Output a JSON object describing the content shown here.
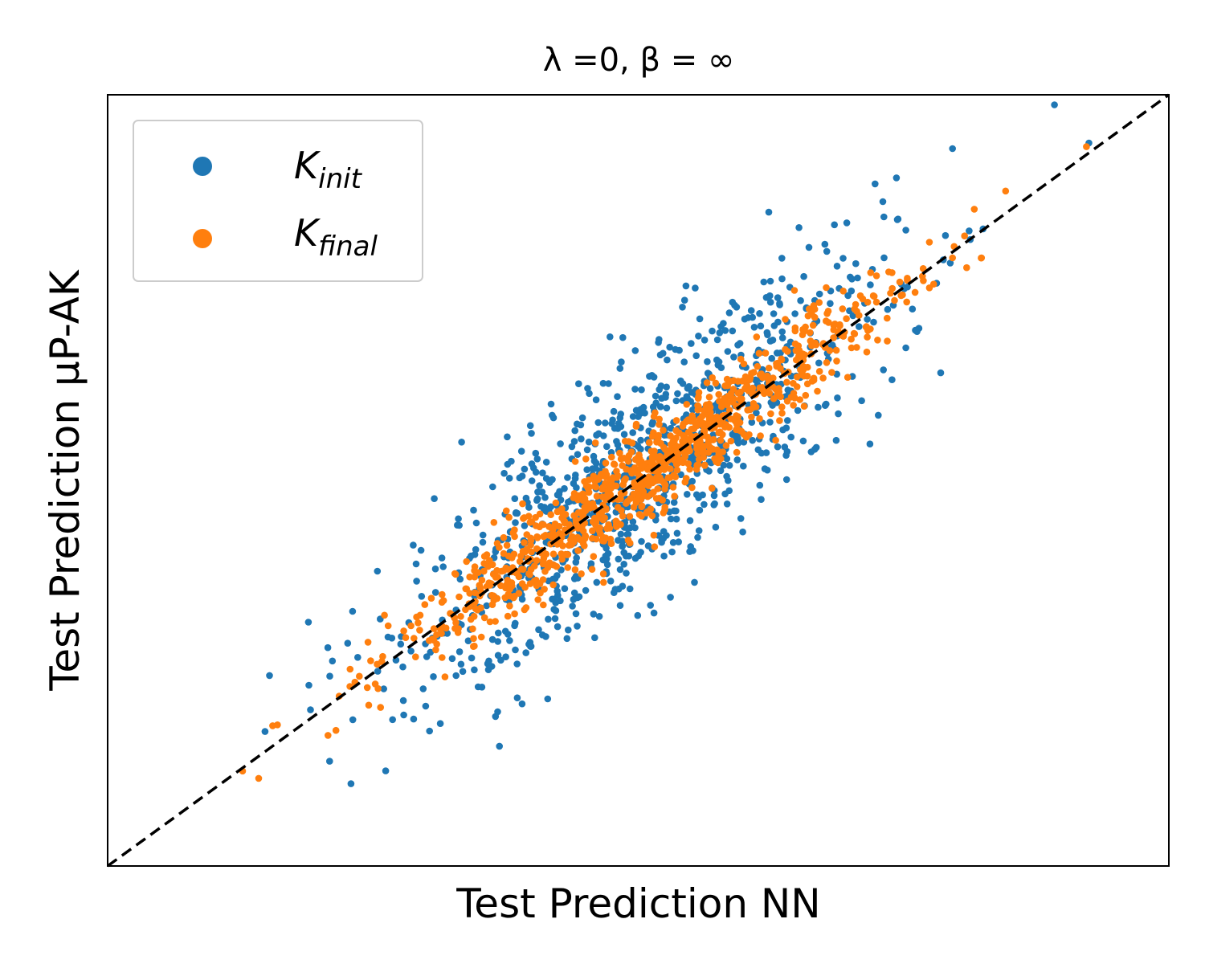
{
  "chart_data": {
    "type": "scatter",
    "title": "λ =0, β = ∞",
    "xlabel": "Test Prediction NN",
    "ylabel": "Test Prediction μP-AK",
    "xlim": [
      -3.0,
      3.0
    ],
    "ylim": [
      -3.0,
      3.0
    ],
    "ticks_shown": false,
    "grid": false,
    "legend_position": "upper-left",
    "reference_line": {
      "type": "identity",
      "style": "dashed",
      "color": "#000000"
    },
    "series": [
      {
        "name": "K_init",
        "color": "#1f77b4",
        "points": []
      },
      {
        "name": "K_final",
        "color": "#ff7f0e",
        "points": []
      }
    ],
    "legend": [
      {
        "series": "K_init",
        "symbol": "K",
        "subscript": "init",
        "color": "#1f77b4"
      },
      {
        "series": "K_final",
        "symbol": "K",
        "subscript": "final",
        "color": "#ff7f0e"
      }
    ]
  }
}
